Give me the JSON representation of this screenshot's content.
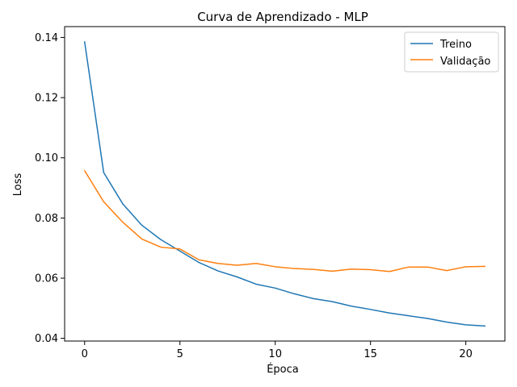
{
  "chart_data": {
    "type": "line",
    "title": "Curva de Aprendizado - MLP",
    "xlabel": "Época",
    "ylabel": "Loss",
    "xlim": [
      -1.05,
      22.05
    ],
    "ylim": [
      0.0391,
      0.1436
    ],
    "xticks": [
      0,
      5,
      10,
      15,
      20
    ],
    "xtick_labels": [
      "0",
      "5",
      "10",
      "15",
      "20"
    ],
    "yticks": [
      0.04,
      0.06,
      0.08,
      0.1,
      0.12,
      0.14
    ],
    "ytick_labels": [
      "0.04",
      "0.06",
      "0.08",
      "0.10",
      "0.12",
      "0.14"
    ],
    "grid": false,
    "legend_position": "top-right",
    "x": [
      0,
      1,
      2,
      3,
      4,
      5,
      6,
      7,
      8,
      9,
      10,
      11,
      12,
      13,
      14,
      15,
      16,
      17,
      18,
      19,
      20,
      21
    ],
    "series": [
      {
        "name": "Treino",
        "color": "#1f77b4",
        "values": [
          0.1385,
          0.0951,
          0.0847,
          0.0776,
          0.0728,
          0.069,
          0.0652,
          0.0624,
          0.0604,
          0.058,
          0.0567,
          0.0548,
          0.0532,
          0.0522,
          0.0507,
          0.0496,
          0.0484,
          0.0475,
          0.0466,
          0.0454,
          0.0445,
          0.0441
        ]
      },
      {
        "name": "Validação",
        "color": "#ff7f0e",
        "values": [
          0.0957,
          0.0854,
          0.0786,
          0.073,
          0.0703,
          0.0697,
          0.0661,
          0.0649,
          0.0643,
          0.0649,
          0.0638,
          0.0632,
          0.0629,
          0.0623,
          0.063,
          0.0628,
          0.0622,
          0.0637,
          0.0637,
          0.0625,
          0.0638,
          0.0639
        ]
      }
    ]
  }
}
